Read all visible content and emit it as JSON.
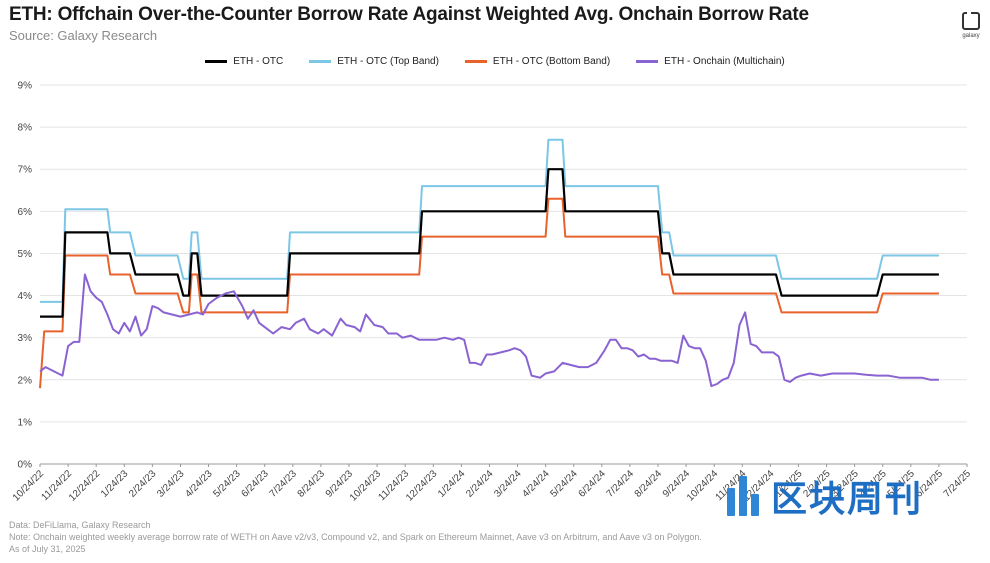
{
  "header": {
    "title": "ETH: Offchain Over-the-Counter Borrow Rate Against Weighted Avg. Onchain Borrow Rate",
    "source": "Source: Galaxy Research",
    "logo_text": "galaxy"
  },
  "footer": {
    "data_line": "Data: DeFiLlama, Galaxy Research",
    "note_line": "Note: Onchain weighted weekly average borrow rate of WETH on Aave v2/v3, Compound v2, and Spark on Ethereum Mainnet, Aave v3 on Arbitrum, and Aave v3 on Polygon.",
    "asof_line": "As of July 31, 2025"
  },
  "watermark": {
    "text": "区块周刊"
  },
  "chart_data": {
    "type": "line",
    "title": "ETH: Offchain Over-the-Counter Borrow Rate Against Weighted Avg. Onchain Borrow Rate",
    "xlabel": "",
    "ylabel": "",
    "ylim": [
      0,
      9
    ],
    "y_ticks": [
      "0%",
      "1%",
      "2%",
      "3%",
      "4%",
      "5%",
      "6%",
      "7%",
      "8%",
      "9%"
    ],
    "x_tick_labels": [
      "10/24/22",
      "11/24/22",
      "12/24/22",
      "1/24/23",
      "2/24/23",
      "3/24/23",
      "4/24/23",
      "5/24/23",
      "6/24/23",
      "7/24/23",
      "8/24/23",
      "9/24/23",
      "10/24/23",
      "11/24/23",
      "12/24/23",
      "1/24/24",
      "2/24/24",
      "3/24/24",
      "4/24/24",
      "5/24/24",
      "6/24/24",
      "7/24/24",
      "8/24/24",
      "9/24/24",
      "10/24/24",
      "11/24/24",
      "12/24/24",
      "1/24/25",
      "2/24/25",
      "3/24/25",
      "4/24/25",
      "5/24/25",
      "6/24/25",
      "7/24/25"
    ],
    "grid": "horizontal",
    "legend_position": "top",
    "series": [
      {
        "name": "ETH - OTC",
        "color": "#000000",
        "points": [
          [
            0,
            3.5
          ],
          [
            0.8,
            3.5
          ],
          [
            0.9,
            5.5
          ],
          [
            2.4,
            5.5
          ],
          [
            2.5,
            5.0
          ],
          [
            3.2,
            5.0
          ],
          [
            3.4,
            4.5
          ],
          [
            4.9,
            4.5
          ],
          [
            5.1,
            4.0
          ],
          [
            5.3,
            4.0
          ],
          [
            5.4,
            5.0
          ],
          [
            5.6,
            5.0
          ],
          [
            5.75,
            4.0
          ],
          [
            8.8,
            4.0
          ],
          [
            8.9,
            5.0
          ],
          [
            13.5,
            5.0
          ],
          [
            13.6,
            6.0
          ],
          [
            18.0,
            6.0
          ],
          [
            18.1,
            7.0
          ],
          [
            18.6,
            7.0
          ],
          [
            18.7,
            6.0
          ],
          [
            22.0,
            6.0
          ],
          [
            22.15,
            5.0
          ],
          [
            22.4,
            5.0
          ],
          [
            22.55,
            4.5
          ],
          [
            26.2,
            4.5
          ],
          [
            26.4,
            4.0
          ],
          [
            29.8,
            4.0
          ],
          [
            30.0,
            4.5
          ],
          [
            32.0,
            4.5
          ]
        ]
      },
      {
        "name": "ETH - OTC (Top Band)",
        "color": "#7cc6e6",
        "points": [
          [
            0,
            3.85
          ],
          [
            0.8,
            3.85
          ],
          [
            0.9,
            6.05
          ],
          [
            2.4,
            6.05
          ],
          [
            2.5,
            5.5
          ],
          [
            3.2,
            5.5
          ],
          [
            3.4,
            4.95
          ],
          [
            4.9,
            4.95
          ],
          [
            5.1,
            4.4
          ],
          [
            5.3,
            4.4
          ],
          [
            5.4,
            5.5
          ],
          [
            5.6,
            5.5
          ],
          [
            5.75,
            4.4
          ],
          [
            8.8,
            4.4
          ],
          [
            8.9,
            5.5
          ],
          [
            13.5,
            5.5
          ],
          [
            13.6,
            6.6
          ],
          [
            18.0,
            6.6
          ],
          [
            18.1,
            7.7
          ],
          [
            18.6,
            7.7
          ],
          [
            18.7,
            6.6
          ],
          [
            22.0,
            6.6
          ],
          [
            22.15,
            5.5
          ],
          [
            22.4,
            5.5
          ],
          [
            22.55,
            4.95
          ],
          [
            26.2,
            4.95
          ],
          [
            26.4,
            4.4
          ],
          [
            29.8,
            4.4
          ],
          [
            30.0,
            4.95
          ],
          [
            32.0,
            4.95
          ]
        ]
      },
      {
        "name": "ETH - OTC (Bottom Band)",
        "color": "#e8622c",
        "points": [
          [
            0,
            1.8
          ],
          [
            0.15,
            3.15
          ],
          [
            0.8,
            3.15
          ],
          [
            0.9,
            4.95
          ],
          [
            2.4,
            4.95
          ],
          [
            2.5,
            4.5
          ],
          [
            3.2,
            4.5
          ],
          [
            3.4,
            4.05
          ],
          [
            4.9,
            4.05
          ],
          [
            5.1,
            3.6
          ],
          [
            5.3,
            3.6
          ],
          [
            5.4,
            4.5
          ],
          [
            5.6,
            4.5
          ],
          [
            5.75,
            3.6
          ],
          [
            8.8,
            3.6
          ],
          [
            8.9,
            4.5
          ],
          [
            13.5,
            4.5
          ],
          [
            13.6,
            5.4
          ],
          [
            18.0,
            5.4
          ],
          [
            18.1,
            6.3
          ],
          [
            18.6,
            6.3
          ],
          [
            18.7,
            5.4
          ],
          [
            22.0,
            5.4
          ],
          [
            22.15,
            4.5
          ],
          [
            22.4,
            4.5
          ],
          [
            22.55,
            4.05
          ],
          [
            26.2,
            4.05
          ],
          [
            26.4,
            3.6
          ],
          [
            29.8,
            3.6
          ],
          [
            30.0,
            4.05
          ],
          [
            32.0,
            4.05
          ]
        ]
      },
      {
        "name": "ETH - Onchain (Multichain)",
        "color": "#8a63d2",
        "points": [
          [
            0,
            2.2
          ],
          [
            0.2,
            2.3
          ],
          [
            0.5,
            2.2
          ],
          [
            0.8,
            2.1
          ],
          [
            1.0,
            2.8
          ],
          [
            1.2,
            2.9
          ],
          [
            1.4,
            2.9
          ],
          [
            1.6,
            4.5
          ],
          [
            1.8,
            4.1
          ],
          [
            2.0,
            3.95
          ],
          [
            2.2,
            3.85
          ],
          [
            2.4,
            3.55
          ],
          [
            2.6,
            3.2
          ],
          [
            2.8,
            3.1
          ],
          [
            3.0,
            3.35
          ],
          [
            3.2,
            3.15
          ],
          [
            3.4,
            3.5
          ],
          [
            3.6,
            3.05
          ],
          [
            3.8,
            3.2
          ],
          [
            4.0,
            3.75
          ],
          [
            4.2,
            3.7
          ],
          [
            4.4,
            3.6
          ],
          [
            4.7,
            3.55
          ],
          [
            5.0,
            3.5
          ],
          [
            5.3,
            3.55
          ],
          [
            5.6,
            3.6
          ],
          [
            5.8,
            3.55
          ],
          [
            6.0,
            3.8
          ],
          [
            6.3,
            3.95
          ],
          [
            6.6,
            4.05
          ],
          [
            6.9,
            4.1
          ],
          [
            7.2,
            3.75
          ],
          [
            7.4,
            3.45
          ],
          [
            7.6,
            3.65
          ],
          [
            7.8,
            3.35
          ],
          [
            8.0,
            3.25
          ],
          [
            8.3,
            3.1
          ],
          [
            8.6,
            3.25
          ],
          [
            8.9,
            3.2
          ],
          [
            9.1,
            3.35
          ],
          [
            9.4,
            3.45
          ],
          [
            9.6,
            3.2
          ],
          [
            9.9,
            3.1
          ],
          [
            10.1,
            3.2
          ],
          [
            10.4,
            3.05
          ],
          [
            10.7,
            3.45
          ],
          [
            10.9,
            3.3
          ],
          [
            11.2,
            3.25
          ],
          [
            11.4,
            3.15
          ],
          [
            11.6,
            3.55
          ],
          [
            11.9,
            3.3
          ],
          [
            12.2,
            3.25
          ],
          [
            12.4,
            3.1
          ],
          [
            12.7,
            3.1
          ],
          [
            12.9,
            3.0
          ],
          [
            13.2,
            3.05
          ],
          [
            13.5,
            2.95
          ],
          [
            13.8,
            2.95
          ],
          [
            14.1,
            2.95
          ],
          [
            14.4,
            3.0
          ],
          [
            14.7,
            2.95
          ],
          [
            14.9,
            3.0
          ],
          [
            15.1,
            2.95
          ],
          [
            15.3,
            2.4
          ],
          [
            15.5,
            2.4
          ],
          [
            15.7,
            2.35
          ],
          [
            15.9,
            2.6
          ],
          [
            16.1,
            2.6
          ],
          [
            16.4,
            2.65
          ],
          [
            16.7,
            2.7
          ],
          [
            16.9,
            2.75
          ],
          [
            17.1,
            2.7
          ],
          [
            17.3,
            2.55
          ],
          [
            17.5,
            2.1
          ],
          [
            17.8,
            2.05
          ],
          [
            18.0,
            2.15
          ],
          [
            18.3,
            2.2
          ],
          [
            18.6,
            2.4
          ],
          [
            18.9,
            2.35
          ],
          [
            19.2,
            2.3
          ],
          [
            19.5,
            2.3
          ],
          [
            19.8,
            2.4
          ],
          [
            20.1,
            2.7
          ],
          [
            20.3,
            2.95
          ],
          [
            20.5,
            2.95
          ],
          [
            20.7,
            2.75
          ],
          [
            20.9,
            2.75
          ],
          [
            21.1,
            2.7
          ],
          [
            21.3,
            2.55
          ],
          [
            21.5,
            2.6
          ],
          [
            21.7,
            2.5
          ],
          [
            21.9,
            2.5
          ],
          [
            22.1,
            2.45
          ],
          [
            22.3,
            2.45
          ],
          [
            22.5,
            2.45
          ],
          [
            22.7,
            2.4
          ],
          [
            22.9,
            3.05
          ],
          [
            23.1,
            2.8
          ],
          [
            23.3,
            2.75
          ],
          [
            23.5,
            2.75
          ],
          [
            23.7,
            2.45
          ],
          [
            23.9,
            1.85
          ],
          [
            24.1,
            1.9
          ],
          [
            24.3,
            2.0
          ],
          [
            24.5,
            2.05
          ],
          [
            24.7,
            2.4
          ],
          [
            24.9,
            3.3
          ],
          [
            25.1,
            3.6
          ],
          [
            25.3,
            2.85
          ],
          [
            25.5,
            2.8
          ],
          [
            25.7,
            2.65
          ],
          [
            25.9,
            2.65
          ],
          [
            26.1,
            2.65
          ],
          [
            26.3,
            2.55
          ],
          [
            26.5,
            2.0
          ],
          [
            26.7,
            1.95
          ],
          [
            26.9,
            2.05
          ],
          [
            27.1,
            2.1
          ],
          [
            27.4,
            2.15
          ],
          [
            27.8,
            2.1
          ],
          [
            28.2,
            2.15
          ],
          [
            28.6,
            2.15
          ],
          [
            29.0,
            2.15
          ],
          [
            29.4,
            2.12
          ],
          [
            29.8,
            2.1
          ],
          [
            30.2,
            2.1
          ],
          [
            30.6,
            2.05
          ],
          [
            31.0,
            2.05
          ],
          [
            31.4,
            2.05
          ],
          [
            31.7,
            2.0
          ],
          [
            32.0,
            2.0
          ]
        ]
      }
    ]
  }
}
